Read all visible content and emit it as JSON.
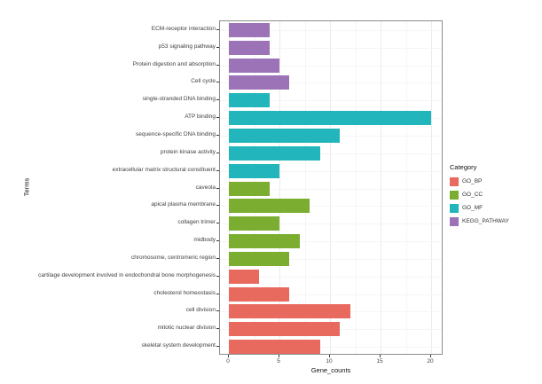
{
  "chart_data": {
    "type": "bar",
    "orientation": "horizontal",
    "xlabel": "Gene_counts",
    "ylabel": "Terms",
    "xlim": [
      0,
      20
    ],
    "x_ticks": [
      0,
      5,
      10,
      15,
      20
    ],
    "x_minor_ticks": [
      2.5,
      7.5,
      12.5,
      17.5
    ],
    "grid": true,
    "legend_position": "right",
    "legend_title": "Category",
    "legend": [
      {
        "name": "GO_BP",
        "color": "#e8695e"
      },
      {
        "name": "GO_CC",
        "color": "#7bad31"
      },
      {
        "name": "GO_MF",
        "color": "#22b5bc"
      },
      {
        "name": "KEGG_PATHWAY",
        "color": "#9c73b7"
      }
    ],
    "bars": [
      {
        "term": "ECM-receptor interaction",
        "value": 4,
        "category": "KEGG_PATHWAY"
      },
      {
        "term": "p53 signaling pathway",
        "value": 4,
        "category": "KEGG_PATHWAY"
      },
      {
        "term": "Protein digestion and absorption",
        "value": 5,
        "category": "KEGG_PATHWAY"
      },
      {
        "term": "Cell cycle",
        "value": 6,
        "category": "KEGG_PATHWAY"
      },
      {
        "term": "single-stranded DNA binding",
        "value": 4,
        "category": "GO_MF"
      },
      {
        "term": "ATP binding",
        "value": 20,
        "category": "GO_MF"
      },
      {
        "term": "sequence-specific DNA binding",
        "value": 11,
        "category": "GO_MF"
      },
      {
        "term": "protein kinase activity",
        "value": 9,
        "category": "GO_MF"
      },
      {
        "term": "extracellular matrix structural constituent",
        "value": 5,
        "category": "GO_MF"
      },
      {
        "term": "caveola",
        "value": 4,
        "category": "GO_CC"
      },
      {
        "term": "apical plasma membrane",
        "value": 8,
        "category": "GO_CC"
      },
      {
        "term": "collagen trimer",
        "value": 5,
        "category": "GO_CC"
      },
      {
        "term": "midbody",
        "value": 7,
        "category": "GO_CC"
      },
      {
        "term": "chromosome, centromeric region",
        "value": 6,
        "category": "GO_CC"
      },
      {
        "term": "cartilage development involved in endochondral bone morphogenesis",
        "value": 3,
        "category": "GO_BP"
      },
      {
        "term": "cholesterol homeostasis",
        "value": 6,
        "category": "GO_BP"
      },
      {
        "term": "cell division",
        "value": 12,
        "category": "GO_BP"
      },
      {
        "term": "mitotic nuclear division",
        "value": 11,
        "category": "GO_BP"
      },
      {
        "term": "skeletal system development",
        "value": 9,
        "category": "GO_BP"
      }
    ]
  }
}
